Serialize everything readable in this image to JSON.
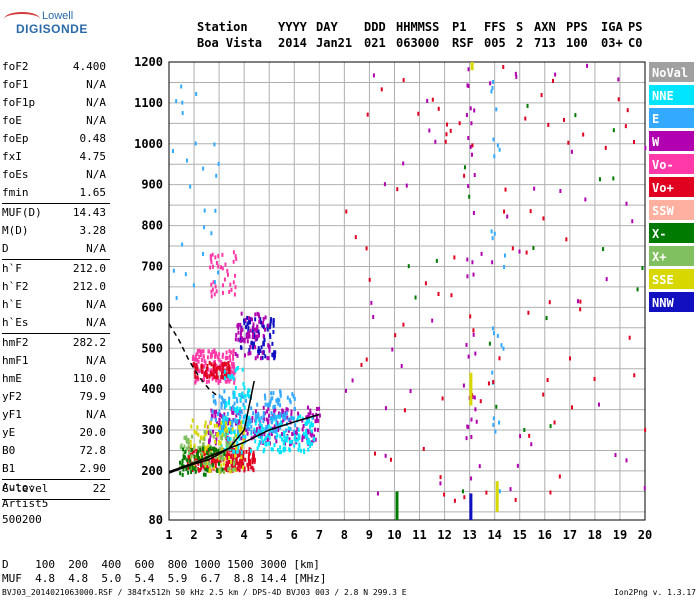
{
  "logo": {
    "line1": "Lowell",
    "line2": "DIGISONDE"
  },
  "header": {
    "labels": [
      "Station",
      "YYYY",
      "DAY",
      "DDD",
      "HHMMSS",
      "P1",
      "FFS",
      "S",
      "AXN",
      "PPS",
      "IGA",
      "PS"
    ],
    "values": [
      "Boa Vista",
      "2014",
      "Jan21",
      "021",
      "063000",
      "RSF",
      "005",
      "2",
      "713",
      "100",
      "03+",
      "C0"
    ]
  },
  "params": {
    "group1": [
      [
        "foF2",
        "4.400"
      ],
      [
        "foF1",
        "N/A"
      ],
      [
        "foF1p",
        "N/A"
      ],
      [
        "foE",
        "N/A"
      ],
      [
        "foEp",
        "0.48"
      ],
      [
        "fxI",
        "4.75"
      ],
      [
        "foEs",
        "N/A"
      ],
      [
        "fmin",
        "1.65"
      ]
    ],
    "group2": [
      [
        "MUF(D)",
        "14.43"
      ],
      [
        "M(D)",
        "3.28"
      ],
      [
        "D",
        "N/A"
      ]
    ],
    "group3": [
      [
        "h`F",
        "212.0"
      ],
      [
        "h`F2",
        "212.0"
      ],
      [
        "h`E",
        "N/A"
      ],
      [
        "h`Es",
        "N/A"
      ]
    ],
    "group4": [
      [
        "hmF2",
        "282.2"
      ],
      [
        "hmF1",
        "N/A"
      ],
      [
        "hmE",
        "110.0"
      ],
      [
        "yF2",
        "79.9"
      ],
      [
        "yF1",
        "N/A"
      ],
      [
        "yE",
        "20.0"
      ],
      [
        "B0",
        "72.8"
      ],
      [
        "B1",
        "2.90"
      ]
    ],
    "group5": [
      [
        "C-level",
        "22"
      ]
    ]
  },
  "auto": [
    "Auto:",
    "Artist5",
    "500200"
  ],
  "bottom_table": {
    "row1": "D    100  200  400  600  800 1000 1500 3000 [km]",
    "row2": "MUF  4.8  4.8  5.0  5.4  5.9  6.7  8.8 14.4 [MHz]"
  },
  "footer": "BVJ03_2014021063000.RSF / 384fx512h 50 kHz 2.5 km / DPS-4D BVJ03 003 / 2.8 N 299.3 E",
  "footer_right": "Ion2Png v. 1.3.17",
  "legend": [
    {
      "label": "NoVal",
      "color": "#a0a0a0"
    },
    {
      "label": "NNE",
      "color": "#00e5ff"
    },
    {
      "label": "E",
      "color": "#33aaff"
    },
    {
      "label": "W",
      "color": "#b000b0"
    },
    {
      "label": "Vo-",
      "color": "#ff3aa8"
    },
    {
      "label": "Vo+",
      "color": "#e00020"
    },
    {
      "label": "SSW",
      "color": "#ffb0a0"
    },
    {
      "label": "X-",
      "color": "#007a00"
    },
    {
      "label": "X+",
      "color": "#80c060"
    },
    {
      "label": "SSE",
      "color": "#d8d800"
    },
    {
      "label": "NNW",
      "color": "#1010c0"
    }
  ],
  "chart_data": {
    "type": "scatter",
    "xlim": [
      1,
      20
    ],
    "ylim": [
      80,
      1200
    ],
    "x_ticks": [
      1,
      2,
      3,
      4,
      5,
      6,
      7,
      8,
      9,
      10,
      11,
      12,
      13,
      14,
      15,
      16,
      17,
      18,
      19,
      20
    ],
    "y_ticks": [
      80,
      200,
      300,
      400,
      500,
      600,
      700,
      800,
      900,
      1000,
      1100,
      1200
    ],
    "grid": true,
    "legend_position": "right",
    "clusters": [
      {
        "series": "Vo+",
        "x": [
          1.7,
          4.4
        ],
        "y": [
          205,
          260
        ],
        "n": 260
      },
      {
        "series": "W",
        "x": [
          2.5,
          7.0
        ],
        "y": [
          270,
          360
        ],
        "n": 220
      },
      {
        "series": "NNE",
        "x": [
          3.0,
          6.8
        ],
        "y": [
          250,
          340
        ],
        "n": 200
      },
      {
        "series": "E",
        "x": [
          2.6,
          6.0
        ],
        "y": [
          300,
          400
        ],
        "n": 160
      },
      {
        "series": "SSE",
        "x": [
          1.8,
          4.0
        ],
        "y": [
          200,
          330
        ],
        "n": 100
      },
      {
        "series": "X+",
        "x": [
          1.4,
          3.6
        ],
        "y": [
          200,
          300
        ],
        "n": 90
      },
      {
        "series": "X-",
        "x": [
          1.4,
          3.2
        ],
        "y": [
          195,
          260
        ],
        "n": 60
      },
      {
        "series": "Vo-",
        "x": [
          1.9,
          3.6
        ],
        "y": [
          420,
          500
        ],
        "n": 130
      },
      {
        "series": "Vo+",
        "x": [
          1.9,
          3.4
        ],
        "y": [
          430,
          470
        ],
        "n": 80
      },
      {
        "series": "NNW",
        "x": [
          3.8,
          5.2
        ],
        "y": [
          480,
          580
        ],
        "n": 90
      },
      {
        "series": "W",
        "x": [
          3.6,
          5.0
        ],
        "y": [
          480,
          590
        ],
        "n": 70
      },
      {
        "series": "NNE",
        "x": [
          3.0,
          4.2
        ],
        "y": [
          350,
          460
        ],
        "n": 40
      },
      {
        "series": "Vo-",
        "x": [
          2.6,
          3.7
        ],
        "y": [
          630,
          740
        ],
        "n": 40
      },
      {
        "series": "W",
        "x": [
          12.8,
          13.2
        ],
        "y": [
          150,
          1200
        ],
        "n": 30
      },
      {
        "series": "E",
        "x": [
          13.8,
          14.4
        ],
        "y": [
          150,
          1200
        ],
        "n": 25
      },
      {
        "series": "Vo+",
        "x": [
          8.0,
          20.0
        ],
        "y": [
          100,
          1200
        ],
        "n": 80
      },
      {
        "series": "W",
        "x": [
          8.0,
          20.0
        ],
        "y": [
          100,
          1200
        ],
        "n": 50
      },
      {
        "series": "X-",
        "x": [
          10.0,
          20.0
        ],
        "y": [
          150,
          1100
        ],
        "n": 20
      },
      {
        "series": "E",
        "x": [
          1.0,
          3.0
        ],
        "y": [
          600,
          1150
        ],
        "n": 25
      }
    ],
    "lines": [
      {
        "name": "profile",
        "style": "solid",
        "x": [
          1.0,
          1.8,
          2.6,
          3.4,
          4.0,
          4.4
        ],
        "y": [
          195,
          213,
          228,
          255,
          300,
          420
        ]
      },
      {
        "name": "trace",
        "style": "solid",
        "x": [
          1.0,
          2.0,
          3.0,
          4.0,
          5.0,
          6.0,
          7.0
        ],
        "y": [
          198,
          220,
          245,
          270,
          300,
          320,
          338
        ]
      },
      {
        "name": "extension",
        "style": "dashed",
        "x": [
          1.0,
          1.4,
          1.8,
          2.2,
          2.6,
          3.0
        ],
        "y": [
          560,
          520,
          470,
          430,
          400,
          380
        ]
      }
    ],
    "bars": [
      {
        "series": "X-",
        "x": 10.1,
        "y": [
          80,
          150
        ]
      },
      {
        "series": "NNW",
        "x": 13.05,
        "y": [
          80,
          145
        ]
      },
      {
        "series": "SSE",
        "x": 13.05,
        "y": [
          360,
          440
        ]
      },
      {
        "series": "SSE",
        "x": 14.1,
        "y": [
          100,
          175
        ]
      },
      {
        "series": "SSE",
        "x": 13.1,
        "y": [
          1180,
          1200
        ]
      }
    ]
  }
}
